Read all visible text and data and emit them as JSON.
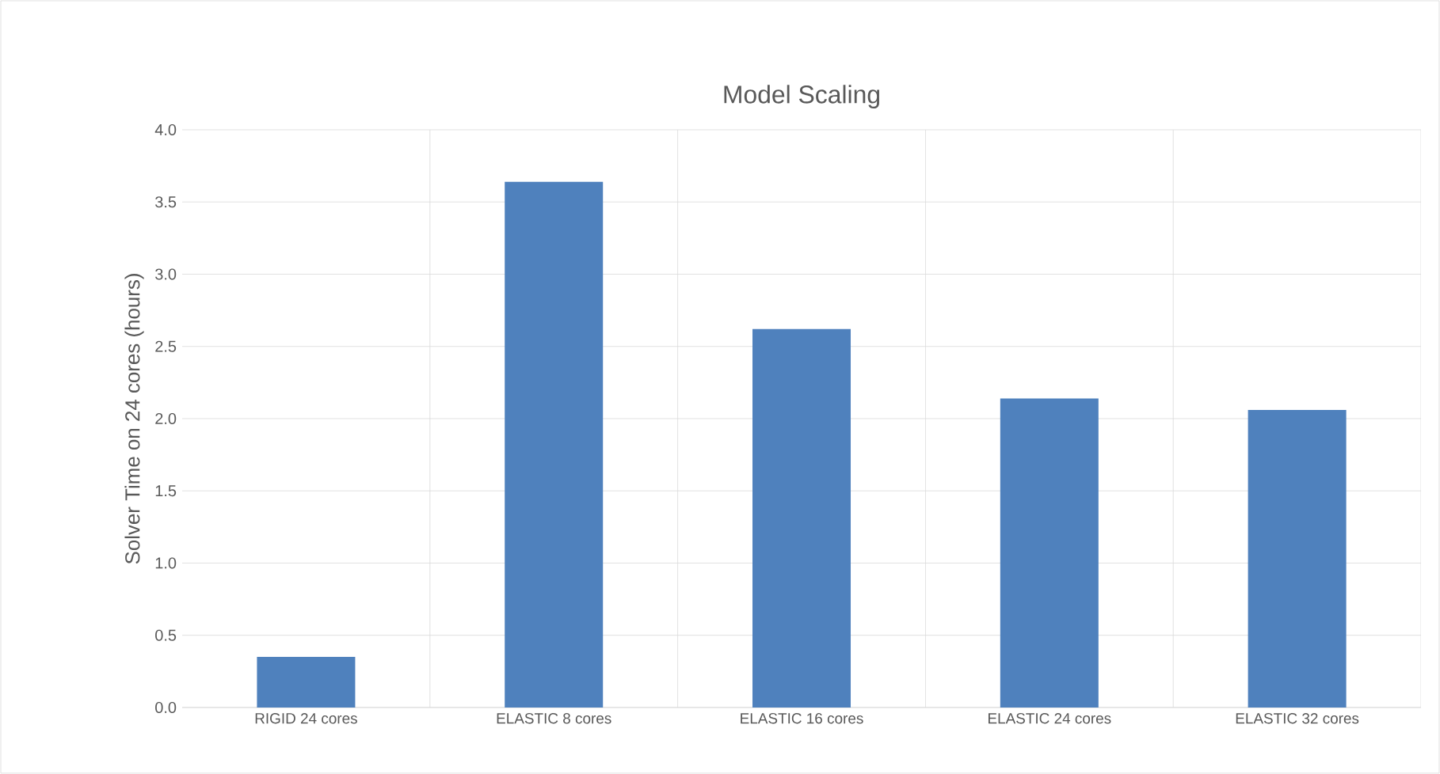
{
  "chart_data": {
    "type": "bar",
    "title": "Model Scaling",
    "ylabel": "Solver Time on 24 cores (hours)",
    "categories": [
      "RIGID 24 cores",
      "ELASTIC 8 cores",
      "ELASTIC 16 cores",
      "ELASTIC 24 cores",
      "ELASTIC 32 cores"
    ],
    "values": [
      0.35,
      3.64,
      2.62,
      2.14,
      2.06
    ],
    "color": "#4f81bd",
    "ylim": [
      0,
      4
    ],
    "yticks": [
      {
        "value": 0,
        "label": "0.0"
      },
      {
        "value": 0.5,
        "label": "0.5"
      },
      {
        "value": 1,
        "label": "1.0"
      },
      {
        "value": 1.5,
        "label": "1.5"
      },
      {
        "value": 2,
        "label": "2.0"
      },
      {
        "value": 2.5,
        "label": "2.5"
      },
      {
        "value": 3,
        "label": "3.0"
      },
      {
        "value": 3.5,
        "label": "3.5"
      },
      {
        "value": 4,
        "label": "4.0"
      }
    ],
    "grid": true
  }
}
